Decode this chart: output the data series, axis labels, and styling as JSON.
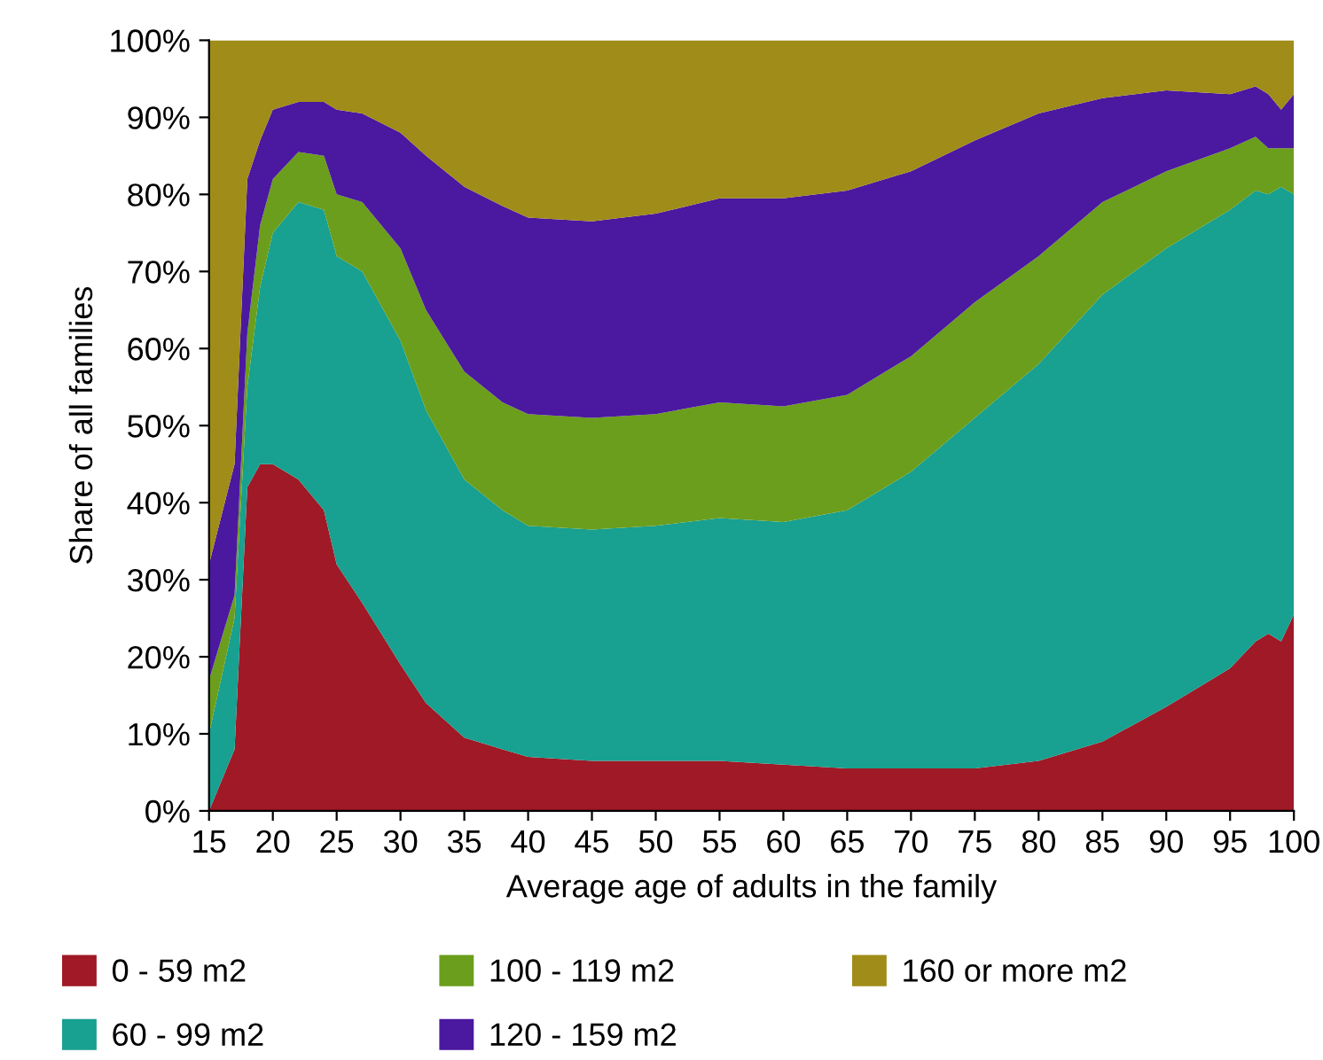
{
  "chart_data": {
    "type": "area",
    "stacked": true,
    "xlabel": "Average age of adults in the family",
    "ylabel": "Share of all families",
    "x": [
      15,
      17,
      18,
      19,
      20,
      22,
      24,
      25,
      27,
      30,
      32,
      35,
      38,
      40,
      45,
      50,
      55,
      60,
      65,
      70,
      75,
      80,
      85,
      90,
      95,
      97,
      98,
      99,
      100
    ],
    "series": [
      {
        "name": "0 - 59 m2",
        "color": "#a01926",
        "values": [
          0,
          8,
          42,
          45,
          45,
          43,
          39,
          32,
          27,
          19,
          14,
          9.5,
          8,
          7,
          6.5,
          6.5,
          6.5,
          6,
          5.5,
          5.5,
          5.5,
          6.5,
          9,
          13.5,
          18.5,
          22,
          23,
          22,
          25.5
        ]
      },
      {
        "name": "60 - 99 m2",
        "color": "#18a090",
        "values": [
          10,
          17,
          13,
          23,
          30,
          36,
          39,
          40,
          43,
          42,
          38,
          33.5,
          31,
          30,
          30,
          30.5,
          31.5,
          31.5,
          33.5,
          38.5,
          45.5,
          51.5,
          58,
          59.5,
          59.5,
          58.5,
          57,
          59,
          54.5
        ]
      },
      {
        "name": "100 - 119 m2",
        "color": "#6b9e1c",
        "values": [
          7,
          3,
          7,
          8,
          7,
          6.5,
          7,
          8,
          9,
          12,
          13,
          14,
          14,
          14.5,
          14.5,
          14.5,
          15,
          15,
          15,
          15,
          15,
          14,
          12,
          10,
          8,
          7,
          6,
          5,
          6
        ]
      },
      {
        "name": "120 - 159 m2",
        "color": "#4b18a0",
        "values": [
          15,
          17,
          20,
          11,
          9,
          6.5,
          7,
          11,
          11.5,
          15,
          20,
          24,
          25.5,
          25.5,
          25.5,
          26,
          26.5,
          27,
          26.5,
          24,
          21,
          18.5,
          13.5,
          10.5,
          7,
          6.5,
          7,
          5,
          7
        ]
      },
      {
        "name": "160 or more m2",
        "color": "#a08c18",
        "values": [
          68,
          55,
          18,
          13,
          9,
          8,
          8,
          9,
          9.5,
          12,
          15,
          19,
          21.5,
          23,
          23.5,
          22.5,
          20.5,
          20.5,
          19.5,
          17,
          13,
          9.5,
          7.5,
          6.5,
          7,
          6,
          7,
          9,
          7
        ]
      }
    ],
    "xlim": [
      15,
      100
    ],
    "xticks": [
      15,
      20,
      25,
      30,
      35,
      40,
      45,
      50,
      55,
      60,
      65,
      70,
      75,
      80,
      85,
      90,
      95,
      100
    ],
    "ylim": [
      0,
      100
    ],
    "yticks": [
      {
        "value": 0,
        "label": "0%"
      },
      {
        "value": 10,
        "label": "10%"
      },
      {
        "value": 20,
        "label": "20%"
      },
      {
        "value": 30,
        "label": "30%"
      },
      {
        "value": 40,
        "label": "40%"
      },
      {
        "value": 50,
        "label": "50%"
      },
      {
        "value": 60,
        "label": "60%"
      },
      {
        "value": 70,
        "label": "70%"
      },
      {
        "value": 80,
        "label": "80%"
      },
      {
        "value": 90,
        "label": "90%"
      },
      {
        "value": 100,
        "label": "100%"
      }
    ],
    "grid": false,
    "legend": "bottom"
  }
}
